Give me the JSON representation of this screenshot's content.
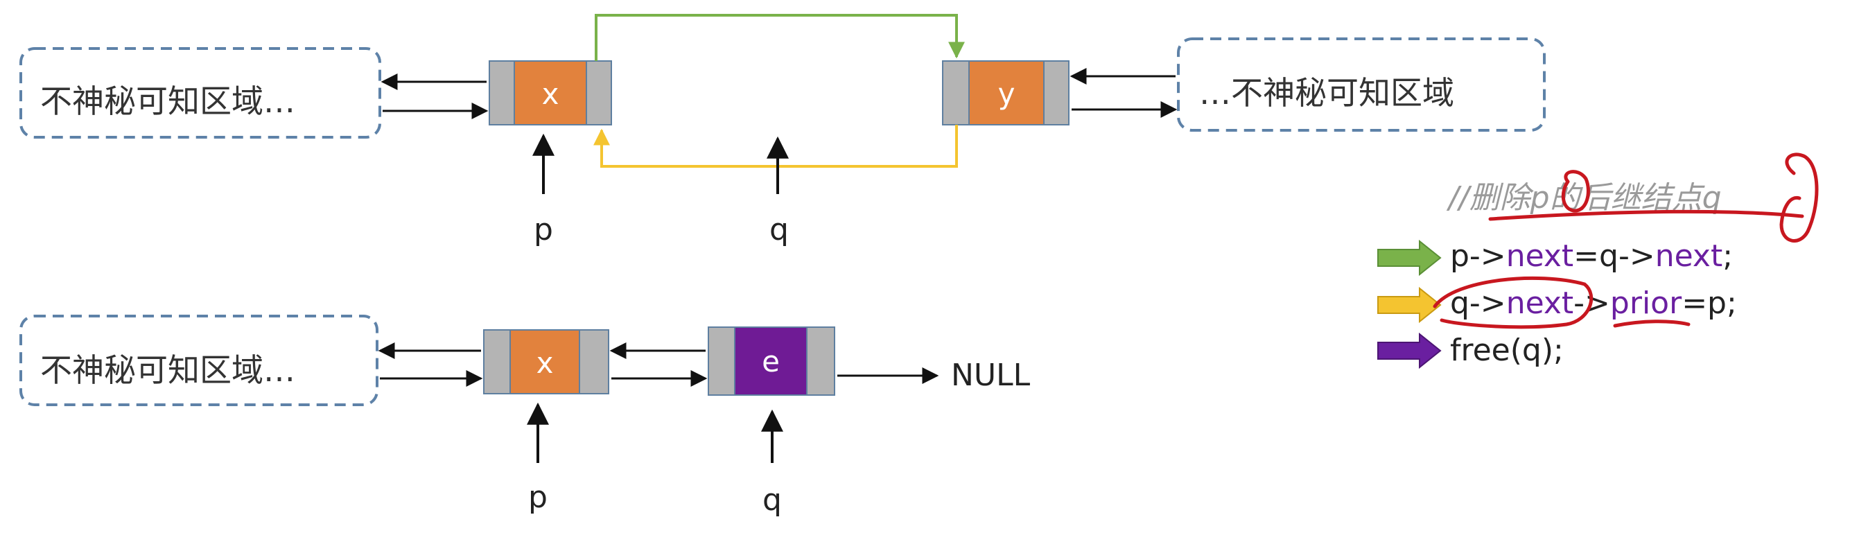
{
  "colors": {
    "node_gray": "#b4b4b4",
    "node_value": "#e2823d",
    "node_value_new": "#6f1b95",
    "region_border": "#5e82a8",
    "green": "#7ab24a",
    "yellow": "#f4c430",
    "purple": "#6a1fa0",
    "annotation_red": "#c8171f",
    "comment_gray": "#9a9a9a"
  },
  "top": {
    "left_region": "不神秘可知区域…",
    "right_region": "…不神秘可知区域",
    "node_x": "x",
    "node_y": "y",
    "ptr_p": "p",
    "ptr_q": "q"
  },
  "bottom": {
    "left_region": "不神秘可知区域…",
    "node_x": "x",
    "node_e": "e",
    "null_label": "NULL",
    "ptr_p": "p",
    "ptr_q": "q"
  },
  "code": {
    "comment": "//删除p的后继结点q",
    "line1": {
      "a": "p->",
      "b": "next",
      "c": "=q->",
      "d": "next",
      "e": ";"
    },
    "line2": {
      "a": "q->",
      "b": "next",
      "c": "->",
      "d": "prior",
      "e": "=p;"
    },
    "line3": "free(q);",
    "arrows": [
      "green-arrow",
      "yellow-arrow",
      "purple-arrow"
    ]
  }
}
